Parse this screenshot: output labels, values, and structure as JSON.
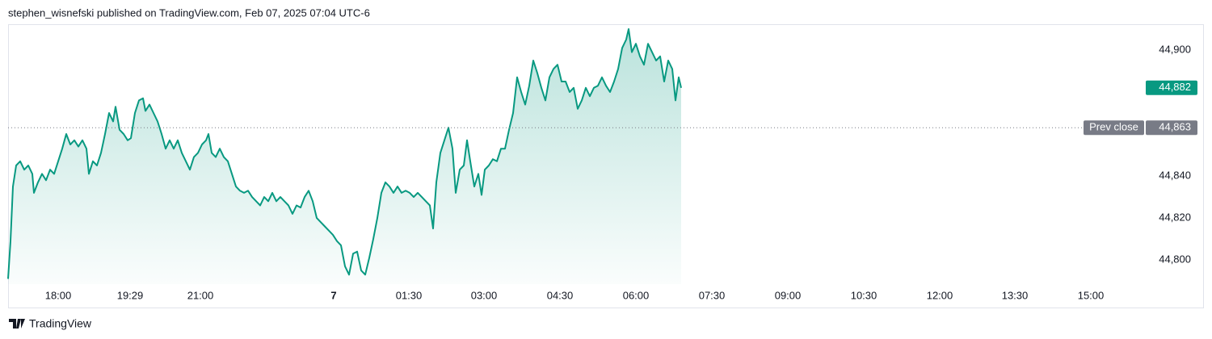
{
  "header": "stephen_wisnefski published on TradingView.com, Feb 07, 2025 07:04 UTC-6",
  "footer": "TradingView",
  "chart_data": {
    "type": "area",
    "color": "#089981",
    "x": [
      0,
      3,
      6,
      10,
      15,
      20,
      25,
      30,
      32,
      37,
      42,
      47,
      52,
      57,
      62,
      67,
      72,
      77,
      82,
      87,
      92,
      97,
      100,
      105,
      110,
      115,
      120,
      125,
      130,
      133,
      138,
      143,
      148,
      152,
      157,
      162,
      167,
      170,
      175,
      180,
      185,
      190,
      195,
      200,
      205,
      210,
      215,
      220,
      225,
      230,
      235,
      240,
      245,
      248,
      252,
      257,
      262,
      267,
      272,
      277,
      282,
      287,
      292,
      297,
      302,
      307,
      312,
      317,
      322,
      327,
      332,
      337,
      342,
      347,
      352,
      357,
      362,
      367,
      372,
      377,
      382,
      387,
      392,
      397,
      402,
      407,
      412,
      417,
      422,
      427,
      432,
      437,
      442,
      447,
      452,
      457,
      462,
      467,
      472,
      477,
      482,
      487,
      492,
      497,
      502,
      507,
      512,
      517,
      522,
      526,
      530,
      535,
      540,
      545,
      550,
      554,
      559,
      564,
      568,
      572,
      577,
      582,
      586,
      590,
      595,
      600,
      605,
      610,
      615,
      620,
      625,
      630,
      635,
      640,
      645,
      650,
      655,
      660,
      665,
      670,
      675,
      680,
      685,
      690,
      695,
      700,
      705,
      710,
      715,
      720,
      725,
      730,
      735,
      740,
      745,
      750,
      755,
      760,
      765,
      768,
      772,
      777,
      782,
      787,
      792,
      797,
      802,
      807,
      812,
      817,
      822,
      826,
      830,
      833
    ],
    "values": [
      44791,
      44809,
      44835,
      44845,
      44847,
      44843,
      44845,
      44841,
      44832,
      44837,
      44841,
      44838,
      44843,
      44841,
      44847,
      44853,
      44860,
      44855,
      44857,
      44854,
      44857,
      44853,
      44841,
      44847,
      44845,
      44851,
      44860,
      44870,
      44866,
      44873,
      44862,
      44860,
      44857,
      44858,
      44870,
      44876,
      44877,
      44871,
      44874,
      44870,
      44866,
      44860,
      44853,
      44857,
      44853,
      44857,
      44851,
      44847,
      44843,
      44849,
      44851,
      44855,
      44857,
      44860,
      44851,
      44849,
      44853,
      44849,
      44847,
      44841,
      44835,
      44833,
      44832,
      44833,
      44830,
      44828,
      44826,
      44830,
      44828,
      44832,
      44828,
      44830,
      44828,
      44826,
      44822,
      44826,
      44825,
      44830,
      44833,
      44828,
      44820,
      44818,
      44816,
      44814,
      44812,
      44809,
      44807,
      44797,
      44793,
      44803,
      44804,
      44795,
      44793,
      44801,
      44810,
      44820,
      44832,
      44837,
      44835,
      44832,
      44835,
      44832,
      44833,
      44832,
      44830,
      44832,
      44830,
      44828,
      44826,
      44815,
      44837,
      44851,
      44857,
      44863,
      44853,
      44832,
      44843,
      44845,
      44857,
      44847,
      44835,
      44841,
      44831,
      44843,
      44845,
      44848,
      44847,
      44853,
      44853,
      44862,
      44870,
      44887,
      44880,
      44874,
      44883,
      44895,
      44889,
      44882,
      44876,
      44887,
      44891,
      44893,
      44885,
      44885,
      44880,
      44882,
      44872,
      44876,
      44882,
      44878,
      44882,
      44883,
      44887,
      44883,
      44880,
      44885,
      44891,
      44901,
      44905,
      44910,
      44899,
      44903,
      44897,
      44893,
      44903,
      44899,
      44895,
      44897,
      44885,
      44895,
      44891,
      44876,
      44887,
      44882
    ],
    "xlim": [
      0,
      1410
    ],
    "ylim": [
      44788.5,
      44912.3
    ],
    "xticks": [
      {
        "value": 62,
        "label": "18:00"
      },
      {
        "value": 151,
        "label": "19:29"
      },
      {
        "value": 238,
        "label": "21:00"
      },
      {
        "value": 403,
        "label": "7"
      },
      {
        "value": 496,
        "label": "01:30"
      },
      {
        "value": 589,
        "label": "03:00"
      },
      {
        "value": 683,
        "label": "04:30"
      },
      {
        "value": 777,
        "label": "06:00"
      },
      {
        "value": 871,
        "label": "07:30"
      },
      {
        "value": 965,
        "label": "09:00"
      },
      {
        "value": 1059,
        "label": "10:30"
      },
      {
        "value": 1153,
        "label": "12:00"
      },
      {
        "value": 1246,
        "label": "13:30"
      },
      {
        "value": 1340,
        "label": "15:00"
      }
    ],
    "yticks": [
      {
        "value": 44800,
        "label": "44,800"
      },
      {
        "value": 44820,
        "label": "44,820"
      },
      {
        "value": 44840,
        "label": "44,840"
      },
      {
        "value": 44900,
        "label": "44,900"
      }
    ],
    "last_price": {
      "value": 44882,
      "label": "44,882"
    },
    "prev_close": {
      "name": "Prev close",
      "value": 44863,
      "label": "44,863",
      "color": "#787b86"
    }
  }
}
